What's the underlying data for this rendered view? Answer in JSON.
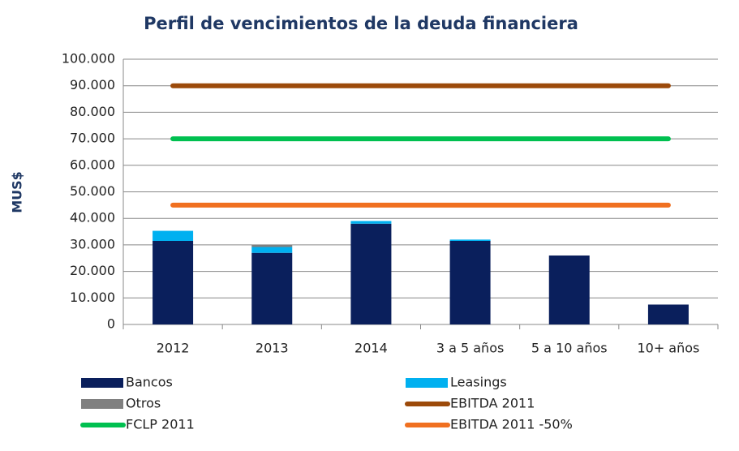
{
  "chart_data": {
    "type": "bar",
    "stacked": true,
    "title": "Perfil de vencimientos de la deuda financiera",
    "y_label": "MUS$",
    "categories": [
      "2012",
      "2013",
      "2014",
      "3 a 5 años",
      "5 a 10 años",
      "10+ años"
    ],
    "series": [
      {
        "name": "Bancos",
        "type": "bar",
        "color": "#0a1f5c",
        "values": [
          31500,
          27000,
          38000,
          31500,
          26000,
          7500
        ]
      },
      {
        "name": "Leasings",
        "type": "bar",
        "color": "#00b0f0",
        "values": [
          3800,
          2200,
          1000,
          500,
          0,
          0
        ]
      },
      {
        "name": "Otros",
        "type": "bar",
        "color": "#808080",
        "values": [
          0,
          800,
          0,
          0,
          0,
          0
        ]
      },
      {
        "name": "EBITDA 2011",
        "type": "line",
        "color": "#9c4a0a",
        "values": [
          90000,
          90000,
          90000,
          90000,
          90000,
          90000
        ]
      },
      {
        "name": "FCLP 2011",
        "type": "line",
        "color": "#00c050",
        "values": [
          70000,
          70000,
          70000,
          70000,
          70000,
          70000
        ]
      },
      {
        "name": "EBITDA 2011 -50%",
        "type": "line",
        "color": "#f07020",
        "values": [
          45000,
          45000,
          45000,
          45000,
          45000,
          45000
        ]
      }
    ],
    "ylim": [
      0,
      100000
    ],
    "yticks": [
      0,
      {
        "value": 10000,
        "label": "10.000"
      },
      {
        "value": 20000,
        "label": "20.000"
      },
      {
        "value": 30000,
        "label": "30.000"
      },
      {
        "value": 40000,
        "label": "40.000"
      },
      {
        "value": 50000,
        "label": "50.000"
      },
      {
        "value": 60000,
        "label": "60.000"
      },
      {
        "value": 70000,
        "label": "70.000"
      },
      {
        "value": 80000,
        "label": "80.000"
      },
      {
        "value": 90000,
        "label": "90.000"
      },
      {
        "value": 100000,
        "label": "100.000"
      }
    ],
    "grid": true
  }
}
